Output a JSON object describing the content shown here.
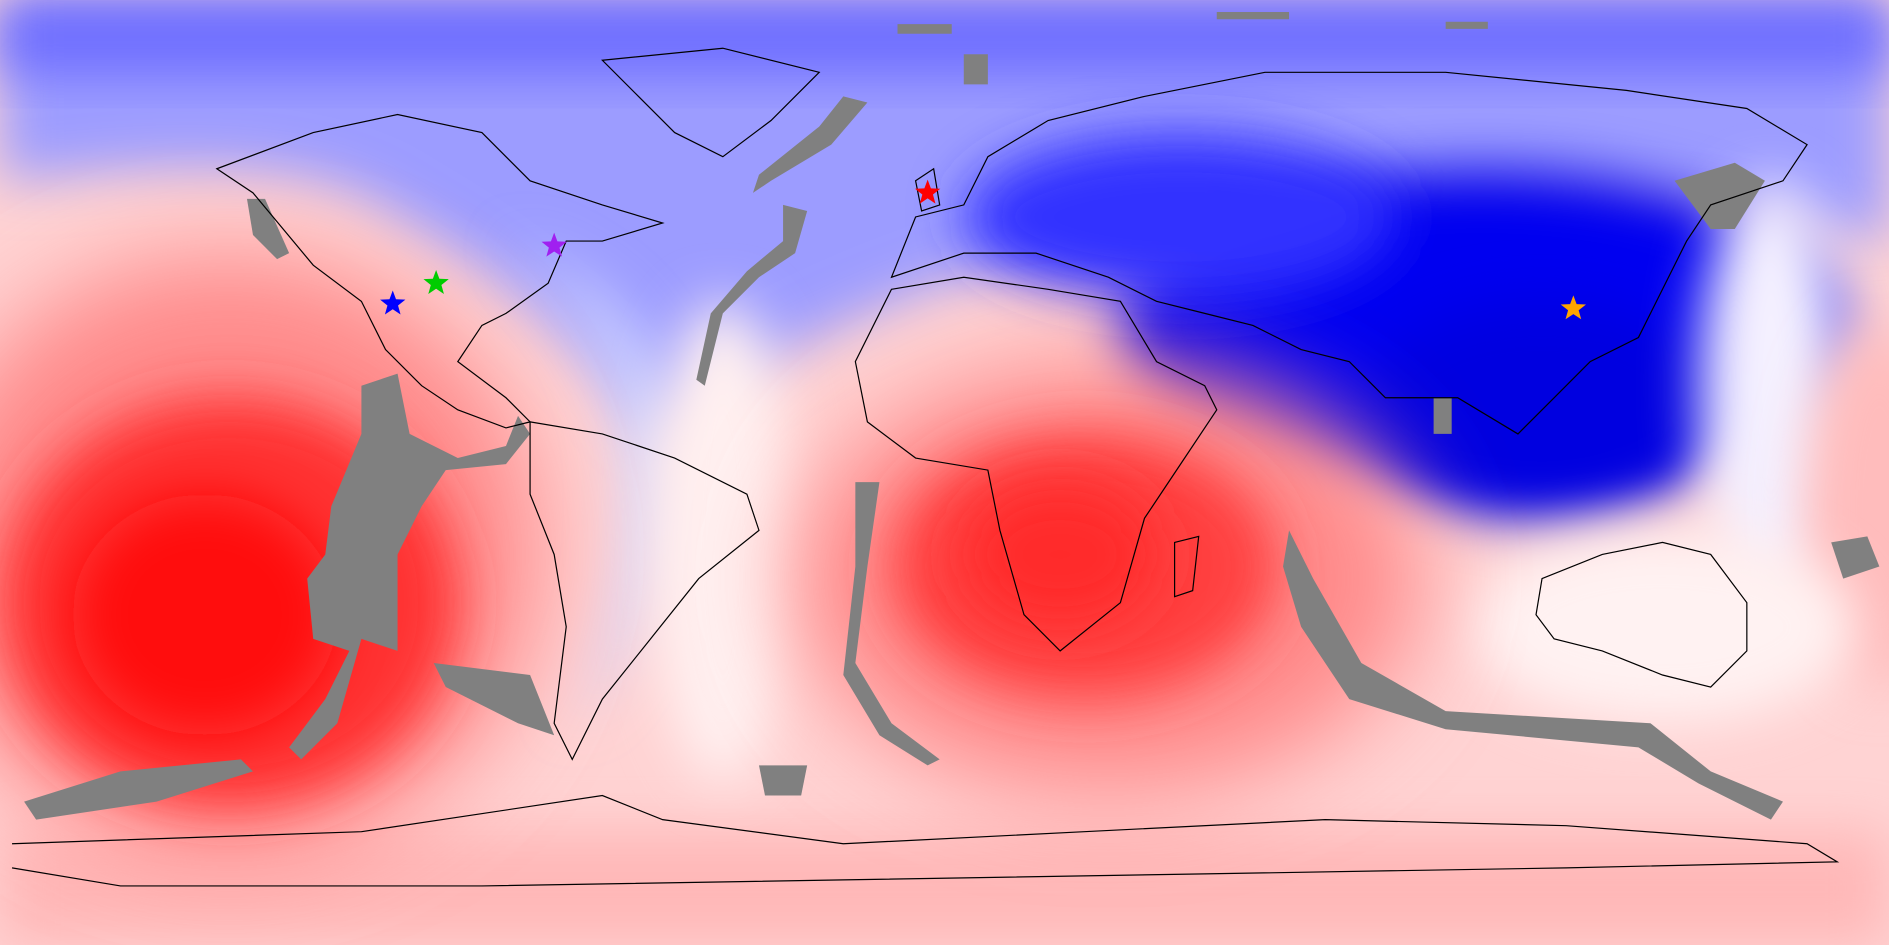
{
  "map": {
    "markers": [
      {
        "color": "#ff0000"
      },
      {
        "color": "#a020f0"
      },
      {
        "color": "#00cc00"
      },
      {
        "color": "#0000ff"
      },
      {
        "color": "#ffa500"
      }
    ]
  }
}
